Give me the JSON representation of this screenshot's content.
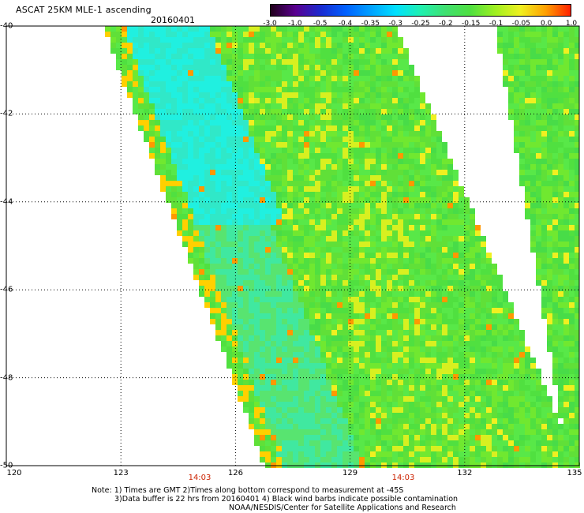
{
  "header": {
    "title": "ASCAT 25KM MLE-1 ascending",
    "date": "20160401"
  },
  "colorbar": {
    "ticks": [
      "-3.0",
      "-1.0",
      "-0.5",
      "-0.4",
      "-0.35",
      "-0.3",
      "-0.25",
      "-0.2",
      "-0.15",
      "-0.1",
      "-0.05",
      "0.0",
      "1.0"
    ],
    "colors": [
      "#20001a",
      "#5a0090",
      "#1a2ad0",
      "#0060ff",
      "#00a0ff",
      "#00e0ff",
      "#20f0b0",
      "#40e070",
      "#50e040",
      "#a0f020",
      "#f0f020",
      "#ffa000",
      "#ff2000"
    ]
  },
  "axes": {
    "lat_labels": [
      "-40",
      "-42",
      "-44",
      "-46",
      "-48",
      "-50"
    ],
    "lon_labels": [
      "120",
      "123",
      "126",
      "129",
      "132",
      "135"
    ],
    "time_labels": [
      "14:03",
      "14:03"
    ]
  },
  "map_data": {
    "lat_range": [
      -50,
      -40
    ],
    "lon_range": [
      120,
      135
    ],
    "lat_ticks": [
      -40,
      -42,
      -44,
      -46,
      -48,
      -50
    ],
    "lon_ticks": [
      120,
      123,
      126,
      129,
      132,
      135
    ],
    "swaths": [
      {
        "name": "swath-west",
        "colors": "cyan-to-green field with yellow/orange patches near edges"
      },
      {
        "name": "swath-east",
        "colors": "green field with yellow edge patches"
      }
    ]
  },
  "notes": {
    "line1": "Note: 1) Times are GMT 2)Times along bottom correspond to measurement at -45S",
    "line2": "3)Data buffer is 22 hrs from 20160401 4) Black wind barbs indicate possible contamination",
    "line3": "NOAA/NESDIS/Center for Satellite Applications and Research"
  }
}
